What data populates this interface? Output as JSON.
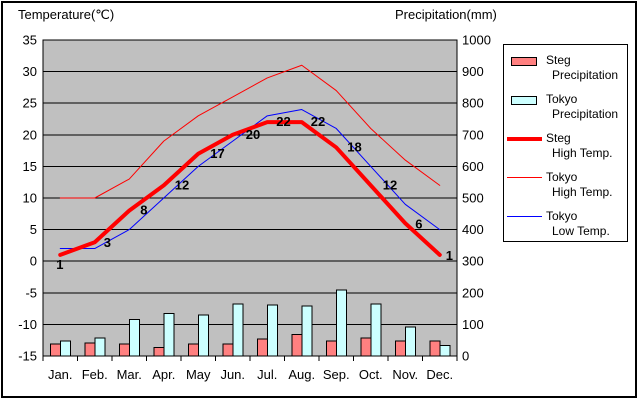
{
  "chart_data": {
    "type": "combo-bar-line",
    "categories": [
      "Jan.",
      "Feb.",
      "Mar.",
      "Apr.",
      "May",
      "Jun.",
      "Jul.",
      "Aug.",
      "Sep.",
      "Oct.",
      "Nov.",
      "Dec."
    ],
    "temp_axis": {
      "title": "Temperature(℃)",
      "min": -15,
      "max": 35,
      "step": 5,
      "ticks": [
        "35",
        "30",
        "25",
        "20",
        "15",
        "10",
        "5",
        "0",
        "-5",
        "-10",
        "-15"
      ]
    },
    "precip_axis": {
      "title": "Precipitation(mm)",
      "min": 0,
      "max": 1000,
      "step": 100,
      "ticks": [
        "1000",
        "900",
        "800",
        "700",
        "600",
        "500",
        "400",
        "300",
        "200",
        "100",
        "0"
      ]
    },
    "plot_bg": "#C0C0C0",
    "gridline_color": "#000000",
    "gridlines": "horizontal",
    "series": [
      {
        "name": "Steg Precipitation",
        "type": "bar",
        "axis": "precip",
        "color": "#FF8080",
        "border": "#000000",
        "values": [
          38,
          41,
          38,
          27,
          38,
          38,
          54,
          68,
          48,
          57,
          48,
          48
        ]
      },
      {
        "name": "Tokyo Precipitation",
        "type": "bar",
        "axis": "precip",
        "color": "#CCFFFF",
        "border": "#000000",
        "values": [
          48,
          57,
          116,
          134,
          129,
          164,
          161,
          158,
          209,
          164,
          91,
          34
        ]
      },
      {
        "name": "Steg High Temp.",
        "type": "line",
        "axis": "temp",
        "color": "#FF0000",
        "stroke_width": 4,
        "values": [
          1,
          3,
          8,
          12,
          17,
          20,
          22,
          22,
          18,
          12,
          6,
          1
        ],
        "data_labels": true
      },
      {
        "name": "Tokyo High Temp.",
        "type": "line",
        "axis": "temp",
        "color": "#FF0000",
        "stroke_width": 1,
        "values": [
          10,
          10,
          13,
          19,
          23,
          26,
          29,
          31,
          27,
          21,
          16,
          12
        ]
      },
      {
        "name": "Tokyo Low Temp.",
        "type": "line",
        "axis": "temp",
        "color": "#0000FF",
        "stroke_width": 1,
        "values": [
          2,
          2,
          5,
          10,
          15,
          19,
          23,
          24,
          21,
          15,
          9,
          5
        ]
      }
    ]
  },
  "legend": {
    "items": [
      {
        "line1": "Steg",
        "line2": "Precipitation",
        "swatch": "bar",
        "color": "#FF8080"
      },
      {
        "line1": "Tokyo",
        "line2": "Precipitation",
        "swatch": "bar",
        "color": "#CCFFFF"
      },
      {
        "line1": "Steg",
        "line2": "High Temp.",
        "swatch": "line-thick",
        "color": "#FF0000"
      },
      {
        "line1": "Tokyo",
        "line2": "High Temp.",
        "swatch": "line-thin",
        "color": "#FF0000"
      },
      {
        "line1": "Tokyo",
        "line2": "Low Temp.",
        "swatch": "line-thin",
        "color": "#0000FF"
      }
    ]
  }
}
